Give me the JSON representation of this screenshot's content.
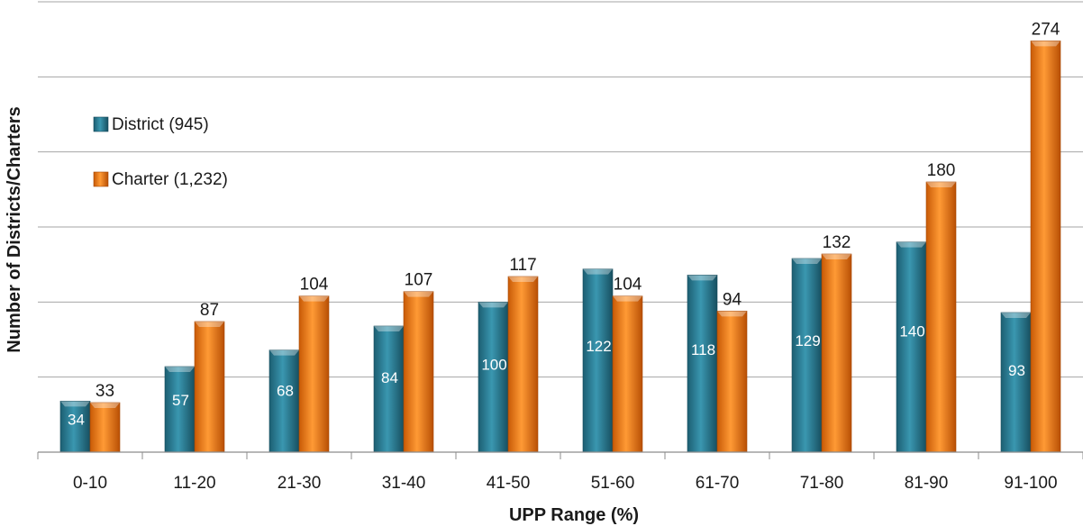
{
  "chart_data": {
    "type": "bar",
    "categories": [
      "0-10",
      "11-20",
      "21-30",
      "31-40",
      "41-50",
      "51-60",
      "61-70",
      "71-80",
      "81-90",
      "91-100"
    ],
    "series": [
      {
        "name": "District (945)",
        "values": [
          34,
          57,
          68,
          84,
          100,
          122,
          118,
          129,
          140,
          93
        ],
        "color": "#2a7d95",
        "label_position": "inside"
      },
      {
        "name": "Charter (1,232)",
        "values": [
          33,
          87,
          104,
          107,
          117,
          104,
          94,
          132,
          180,
          274
        ],
        "color": "#f07a12",
        "label_position": "above"
      }
    ],
    "title": "",
    "xlabel": "UPP Range (%)",
    "ylabel": "Number of Districts/Charters",
    "ylim": [
      0,
      300
    ],
    "grid": true,
    "legend": "upper-left"
  }
}
